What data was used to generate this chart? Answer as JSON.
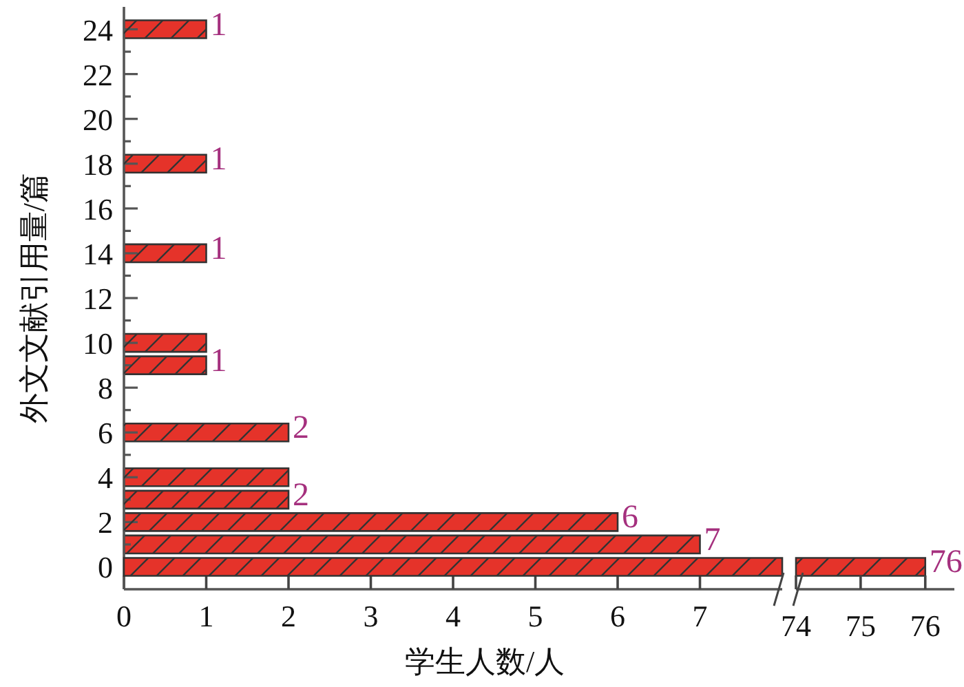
{
  "chart_data": [
    {
      "type": "bar",
      "orientation": "horizontal",
      "xlabel": "学生人数/人",
      "ylabel": "外文文献引用量/篇",
      "x": [
        1,
        2,
        3,
        4,
        6,
        9,
        10,
        14,
        18,
        24
      ],
      "series": [
        {
          "color": "#e5332a",
          "values": [
            7,
            6,
            2,
            2,
            2,
            1,
            1,
            1,
            1,
            1
          ],
          "value_labels": [
            "7",
            "6",
            "2",
            null,
            "2",
            "1",
            null,
            "1",
            "1",
            "1"
          ]
        }
      ],
      "xlim": [
        0,
        8
      ],
      "xticks": [
        0,
        1,
        2,
        3,
        4,
        5,
        6,
        7
      ],
      "ylim": [
        -1,
        25
      ],
      "yticks": [
        0,
        {
          "value": 1,
          "label": null
        },
        2,
        {
          "value": 3,
          "label": null
        },
        4,
        {
          "value": 5,
          "label": null
        },
        6,
        {
          "value": 7,
          "label": null
        },
        8,
        {
          "value": 9,
          "label": null
        },
        10,
        {
          "value": 11,
          "label": null
        },
        12,
        {
          "value": 13,
          "label": null
        },
        14,
        {
          "value": 15,
          "label": null
        },
        16,
        {
          "value": 17,
          "label": null
        },
        18,
        {
          "value": 19,
          "label": null
        },
        20,
        {
          "value": 21,
          "label": null
        },
        22,
        {
          "value": 23,
          "label": null
        },
        24
      ]
    },
    {
      "type": "bar",
      "orientation": "horizontal",
      "x": [
        0
      ],
      "series": [
        {
          "color": "#e5332a",
          "values": [
            76
          ],
          "value_labels": [
            "76"
          ]
        }
      ],
      "xlim": [
        74,
        76.45
      ],
      "xticks": [
        74,
        75,
        76
      ],
      "tick_labels": "x"
    }
  ]
}
